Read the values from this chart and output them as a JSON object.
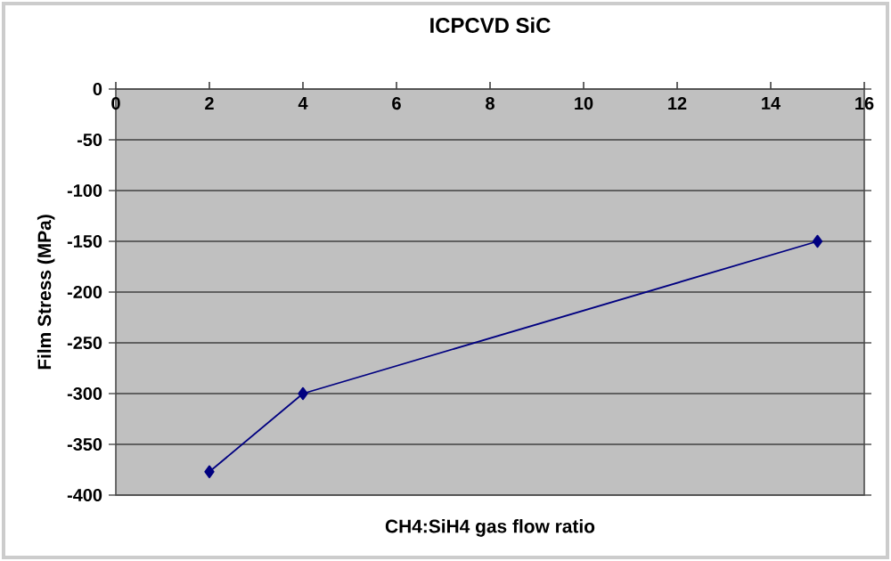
{
  "chart_data": {
    "type": "line",
    "title": "ICPCVD SiC",
    "xlabel": "CH4:SiH4 gas flow ratio",
    "ylabel": "Film Stress (MPa)",
    "x": [
      2,
      4,
      15
    ],
    "series": [
      {
        "color": "#000080",
        "values": [
          -377,
          -300,
          -150
        ]
      }
    ],
    "xlim": [
      0,
      16
    ],
    "xticks": [
      0,
      2,
      4,
      6,
      8,
      10,
      12,
      14,
      16
    ],
    "ylim": [
      -400,
      0
    ],
    "yticks": [
      -400,
      -350,
      -300,
      -250,
      -200,
      -150,
      -100,
      -50,
      0
    ],
    "grid": "y",
    "marker": "diamond",
    "line_style": "solid"
  }
}
